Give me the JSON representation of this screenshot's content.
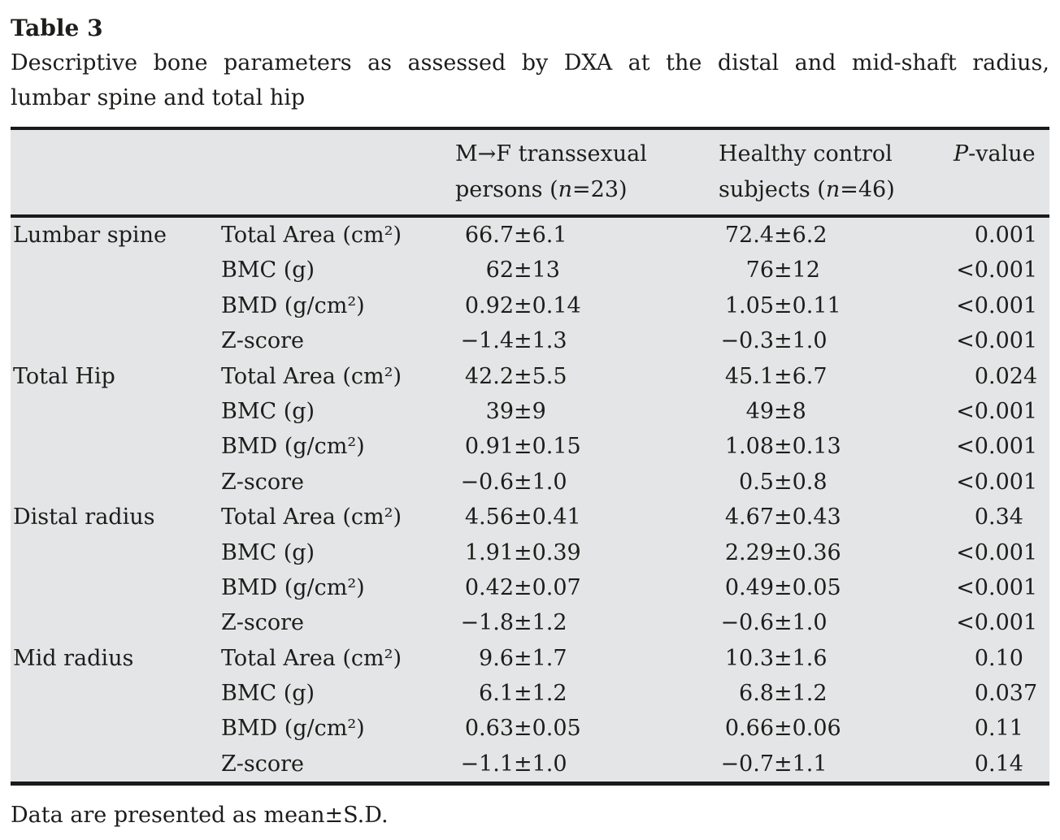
{
  "title": "Table 3",
  "caption_line1": "Descriptive bone parameters as assessed by DXA at the distal and mid-shaft radius,",
  "caption_line2": "lumbar spine and total hip",
  "footnote": "Data are presented as mean±S.D.",
  "colors": {
    "table_bg": "#e4e5e6",
    "rule": "#1a1a1a",
    "text": "#1d1d1b",
    "page_bg": "#ffffff"
  },
  "table": {
    "header": {
      "group1": {
        "line1": "M→F transsexual",
        "line2_pre": "persons (",
        "n_var": "n",
        "line2_post": "=23)"
      },
      "group2": {
        "line1": "Healthy control",
        "line2_pre": "subjects (",
        "n_var": "n",
        "line2_post": "=46)"
      },
      "pcol": {
        "italic": "P",
        "rest": "-value"
      }
    },
    "rows": [
      {
        "group": "Lumbar spine",
        "param": "Total Area (cm²)",
        "mtf": "66.7±6.1",
        "control": "72.4±6.2",
        "p": "0.001"
      },
      {
        "group": "",
        "param": "BMC (g)",
        "mtf": "62±13",
        "control": "76±12",
        "p": "<0.001"
      },
      {
        "group": "",
        "param": "BMD (g/cm²)",
        "mtf": "0.92±0.14",
        "control": "1.05±0.11",
        "p": "<0.001"
      },
      {
        "group": "",
        "param": "Z-score",
        "mtf": "−1.4±1.3",
        "control": "−0.3±1.0",
        "p": "<0.001"
      },
      {
        "group": "Total Hip",
        "param": "Total Area (cm²)",
        "mtf": "42.2±5.5",
        "control": "45.1±6.7",
        "p": "0.024"
      },
      {
        "group": "",
        "param": "BMC (g)",
        "mtf": "39±9",
        "control": "49±8",
        "p": "<0.001"
      },
      {
        "group": "",
        "param": "BMD (g/cm²)",
        "mtf": "0.91±0.15",
        "control": "1.08±0.13",
        "p": "<0.001"
      },
      {
        "group": "",
        "param": "Z-score",
        "mtf": "−0.6±1.0",
        "control": "0.5±0.8",
        "p": "<0.001"
      },
      {
        "group": "Distal radius",
        "param": "Total Area (cm²)",
        "mtf": "4.56±0.41",
        "control": "4.67±0.43",
        "p": "0.34"
      },
      {
        "group": "",
        "param": "BMC (g)",
        "mtf": "1.91±0.39",
        "control": "2.29±0.36",
        "p": "<0.001"
      },
      {
        "group": "",
        "param": "BMD (g/cm²)",
        "mtf": "0.42±0.07",
        "control": "0.49±0.05",
        "p": "<0.001"
      },
      {
        "group": "",
        "param": "Z-score",
        "mtf": "−1.8±1.2",
        "control": "−0.6±1.0",
        "p": "<0.001"
      },
      {
        "group": "Mid radius",
        "param": "Total Area (cm²)",
        "mtf": "9.6±1.7",
        "control": "10.3±1.6",
        "p": "0.10"
      },
      {
        "group": "",
        "param": "BMC (g)",
        "mtf": "6.1±1.2",
        "control": "6.8±1.2",
        "p": "0.037"
      },
      {
        "group": "",
        "param": "BMD (g/cm²)",
        "mtf": "0.63±0.05",
        "control": "0.66±0.06",
        "p": "0.11"
      },
      {
        "group": "",
        "param": "Z-score",
        "mtf": "−1.1±1.0",
        "control": "−0.7±1.1",
        "p": "0.14"
      }
    ]
  }
}
